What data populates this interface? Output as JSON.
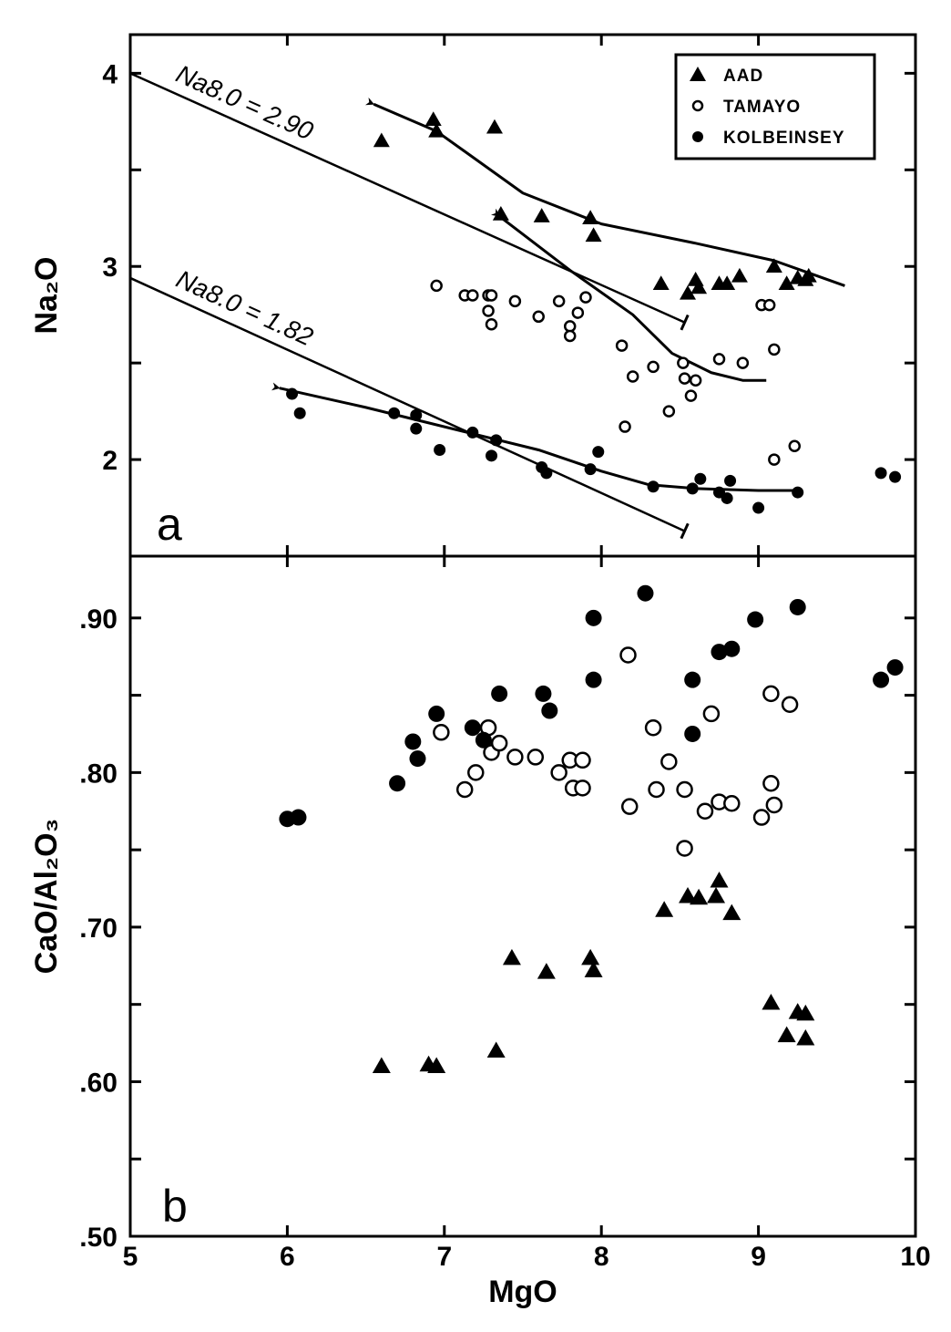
{
  "chart_data": [
    {
      "type": "scatter",
      "panel_label": "a",
      "xlabel": "",
      "ylabel": "Na₂O",
      "xlim": [
        5,
        10
      ],
      "ylim": [
        1.5,
        4.2
      ],
      "yticks": [
        2,
        3,
        4
      ],
      "ytick_labels": [
        "2",
        "3",
        "4"
      ],
      "legend": {
        "placement": "top-right",
        "entries": [
          {
            "label": "AAD",
            "marker": "filled-triangle"
          },
          {
            "label": "TAMAYO",
            "marker": "open-circle"
          },
          {
            "label": "KOLBEINSEY",
            "marker": "filled-circle"
          }
        ]
      },
      "series": [
        {
          "name": "AAD",
          "marker": "filled-triangle",
          "x": [
            6.6,
            6.93,
            6.95,
            7.32,
            7.36,
            7.62,
            7.93,
            7.95,
            8.38,
            8.55,
            8.6,
            8.62,
            8.75,
            8.8,
            8.88,
            9.1,
            9.18,
            9.25,
            9.3,
            9.32
          ],
          "y": [
            3.65,
            3.76,
            3.7,
            3.72,
            3.27,
            3.26,
            3.25,
            3.16,
            2.91,
            2.86,
            2.93,
            2.89,
            2.91,
            2.91,
            2.95,
            3.0,
            2.91,
            2.94,
            2.93,
            2.95
          ]
        },
        {
          "name": "TAMAYO",
          "marker": "open-circle",
          "x": [
            6.95,
            7.13,
            7.18,
            7.28,
            7.28,
            7.3,
            7.3,
            7.45,
            7.6,
            7.73,
            7.8,
            7.8,
            7.85,
            7.9,
            8.13,
            8.15,
            8.2,
            8.33,
            8.43,
            8.52,
            8.53,
            8.57,
            8.6,
            8.75,
            8.9,
            9.02,
            9.07,
            9.1,
            9.1,
            9.23
          ],
          "y": [
            2.9,
            2.85,
            2.85,
            2.85,
            2.77,
            2.7,
            2.85,
            2.82,
            2.74,
            2.82,
            2.69,
            2.64,
            2.76,
            2.84,
            2.59,
            2.17,
            2.43,
            2.48,
            2.25,
            2.5,
            2.42,
            2.33,
            2.41,
            2.52,
            2.5,
            2.8,
            2.8,
            2.57,
            2.0,
            2.07
          ]
        },
        {
          "name": "KOLBEINSEY",
          "marker": "filled-circle",
          "x": [
            6.03,
            6.08,
            6.68,
            6.82,
            6.82,
            6.97,
            7.18,
            7.3,
            7.33,
            7.62,
            7.65,
            7.93,
            7.98,
            8.33,
            8.58,
            8.63,
            8.75,
            8.8,
            8.82,
            9.0,
            9.25,
            9.78,
            9.87
          ],
          "y": [
            2.34,
            2.24,
            2.24,
            2.23,
            2.16,
            2.05,
            2.14,
            2.02,
            2.1,
            1.96,
            1.93,
            1.95,
            2.04,
            1.86,
            1.85,
            1.9,
            1.83,
            1.8,
            1.89,
            1.75,
            1.83,
            1.93,
            1.91
          ]
        }
      ],
      "trend_lines": [
        {
          "name": "AAD trend",
          "arrow_start": true,
          "x": [
            6.55,
            6.95,
            7.5,
            8.0,
            8.6,
            9.1,
            9.55
          ],
          "y": [
            3.84,
            3.7,
            3.38,
            3.22,
            3.12,
            3.03,
            2.9
          ]
        },
        {
          "name": "TAMAYO trend",
          "arrow_start": true,
          "x": [
            7.35,
            7.8,
            8.2,
            8.45,
            8.7,
            8.9,
            9.05
          ],
          "y": [
            3.26,
            2.98,
            2.75,
            2.55,
            2.45,
            2.41,
            2.41
          ]
        },
        {
          "name": "KOLBEINSEY trend",
          "arrow_start": true,
          "x": [
            5.95,
            6.5,
            7.2,
            7.6,
            8.0,
            8.3,
            8.6,
            9.0,
            9.25
          ],
          "y": [
            2.37,
            2.27,
            2.13,
            2.05,
            1.94,
            1.87,
            1.85,
            1.84,
            1.84
          ]
        }
      ],
      "reference_lines": [
        {
          "label": "Na8.0 = 2.90",
          "x": [
            5.0,
            8.53
          ],
          "y": [
            4.0,
            2.71
          ]
        },
        {
          "label": "Na8.0 = 1.82",
          "x": [
            5.0,
            8.53
          ],
          "y": [
            2.94,
            1.63
          ]
        }
      ]
    },
    {
      "type": "scatter",
      "panel_label": "b",
      "xlabel": "MgO",
      "ylabel": "CaO/Al₂O₃",
      "xlim": [
        5,
        10
      ],
      "ylim": [
        0.5,
        0.94
      ],
      "xticks": [
        5,
        6,
        7,
        8,
        9,
        10
      ],
      "xtick_labels": [
        "5",
        "6",
        "7",
        "8",
        "9",
        "10"
      ],
      "yticks": [
        0.5,
        0.6,
        0.7,
        0.8,
        0.9
      ],
      "ytick_labels": [
        ".50",
        ".60",
        ".70",
        ".80",
        ".90"
      ],
      "series": [
        {
          "name": "AAD",
          "marker": "filled-triangle",
          "x": [
            6.6,
            6.9,
            6.95,
            7.33,
            7.43,
            7.65,
            7.93,
            7.95,
            8.4,
            8.55,
            8.62,
            8.73,
            8.75,
            8.83,
            9.08,
            9.18,
            9.25,
            9.3,
            9.3
          ],
          "y": [
            0.61,
            0.611,
            0.61,
            0.62,
            0.68,
            0.671,
            0.68,
            0.672,
            0.711,
            0.72,
            0.719,
            0.72,
            0.73,
            0.709,
            0.651,
            0.63,
            0.645,
            0.644,
            0.628
          ]
        },
        {
          "name": "TAMAYO",
          "marker": "open-circle",
          "x": [
            6.98,
            7.13,
            7.2,
            7.28,
            7.3,
            7.35,
            7.45,
            7.58,
            7.73,
            7.8,
            7.82,
            7.88,
            7.88,
            8.17,
            8.18,
            8.33,
            8.35,
            8.43,
            8.53,
            8.53,
            8.66,
            8.7,
            8.75,
            8.83,
            9.02,
            9.08,
            9.08,
            9.1,
            9.2
          ],
          "y": [
            0.826,
            0.789,
            0.8,
            0.829,
            0.813,
            0.819,
            0.81,
            0.81,
            0.8,
            0.808,
            0.79,
            0.808,
            0.79,
            0.876,
            0.778,
            0.829,
            0.789,
            0.807,
            0.789,
            0.751,
            0.775,
            0.838,
            0.781,
            0.78,
            0.771,
            0.851,
            0.793,
            0.779,
            0.844
          ]
        },
        {
          "name": "KOLBEINSEY",
          "marker": "filled-circle",
          "x": [
            6.0,
            6.07,
            6.7,
            6.8,
            6.83,
            6.95,
            7.18,
            7.25,
            7.35,
            7.63,
            7.67,
            7.95,
            7.95,
            8.28,
            8.58,
            8.58,
            8.75,
            8.83,
            8.98,
            9.25,
            9.78,
            9.87
          ],
          "y": [
            0.77,
            0.771,
            0.793,
            0.82,
            0.809,
            0.838,
            0.829,
            0.821,
            0.851,
            0.851,
            0.84,
            0.9,
            0.86,
            0.916,
            0.86,
            0.825,
            0.878,
            0.88,
            0.899,
            0.907,
            0.86,
            0.868
          ]
        }
      ]
    }
  ]
}
